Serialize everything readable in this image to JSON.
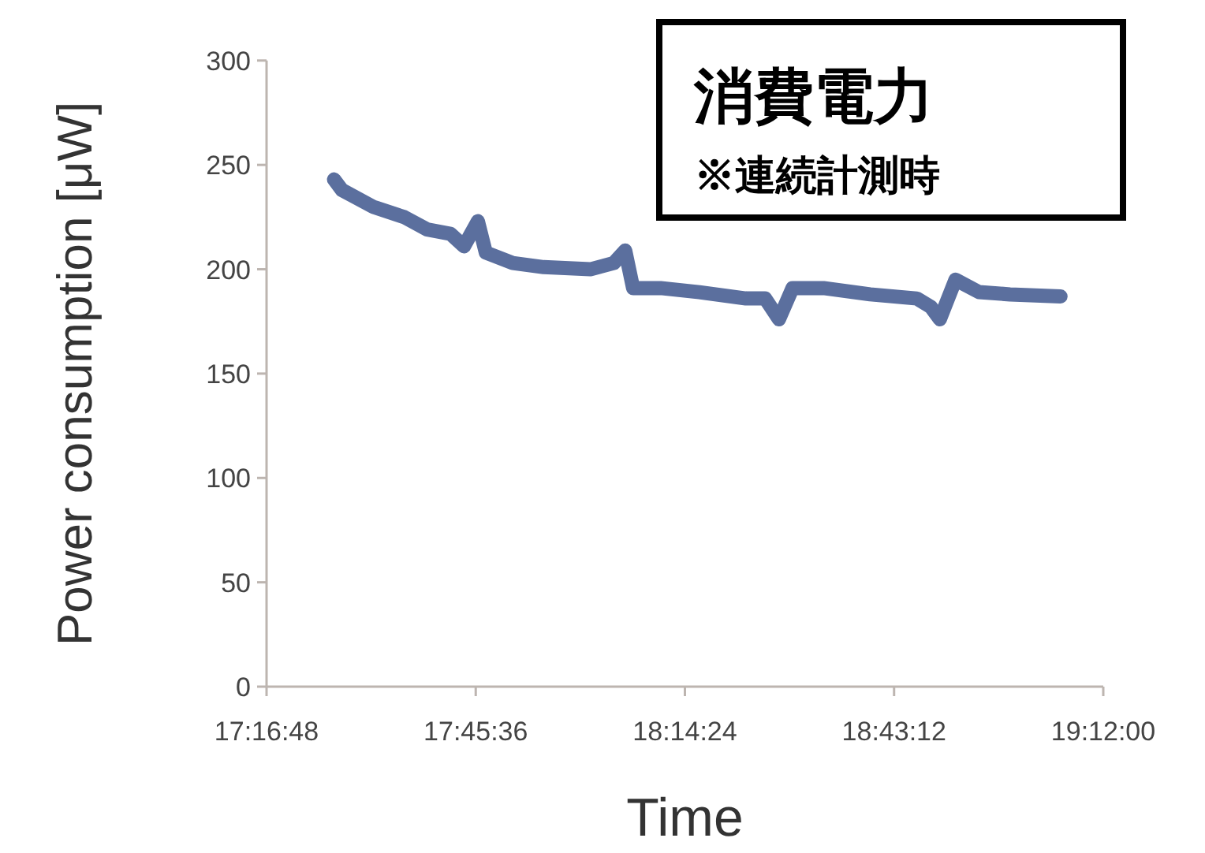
{
  "chart_data": {
    "type": "line",
    "title": "消費電力",
    "subtitle": "※連続計測時",
    "xlabel": "Time",
    "ylabel": "Power consumption [μW]",
    "xlim": [
      17.28,
      19.2
    ],
    "xticks": [
      {
        "value": 17.28,
        "label": "17:16:48"
      },
      {
        "value": 17.76,
        "label": "17:45:36"
      },
      {
        "value": 18.24,
        "label": "18:14:24"
      },
      {
        "value": 18.72,
        "label": "18:43:12"
      },
      {
        "value": 19.2,
        "label": "19:12:00"
      }
    ],
    "ylim": [
      0,
      300
    ],
    "yticks": [
      0,
      50,
      100,
      150,
      200,
      250,
      300
    ],
    "grid": false,
    "marker": "none",
    "line_style": "solid",
    "series": [
      {
        "color": "#5b6f9e",
        "x": [
          17.435,
          17.453,
          17.524,
          17.596,
          17.649,
          17.702,
          17.733,
          17.765,
          17.783,
          17.845,
          17.916,
          18.023,
          18.077,
          18.103,
          18.121,
          18.184,
          18.273,
          18.38,
          18.424,
          18.456,
          18.487,
          18.558,
          18.665,
          18.772,
          18.804,
          18.825,
          18.861,
          18.915,
          18.986,
          19.102
        ],
        "values": [
          243,
          238,
          230,
          225,
          219,
          217,
          211,
          223,
          208,
          203,
          201,
          200,
          203,
          209,
          191,
          191,
          189,
          186,
          186,
          176,
          191,
          191,
          188,
          186,
          182,
          176,
          195,
          189,
          188,
          187
        ]
      }
    ]
  }
}
